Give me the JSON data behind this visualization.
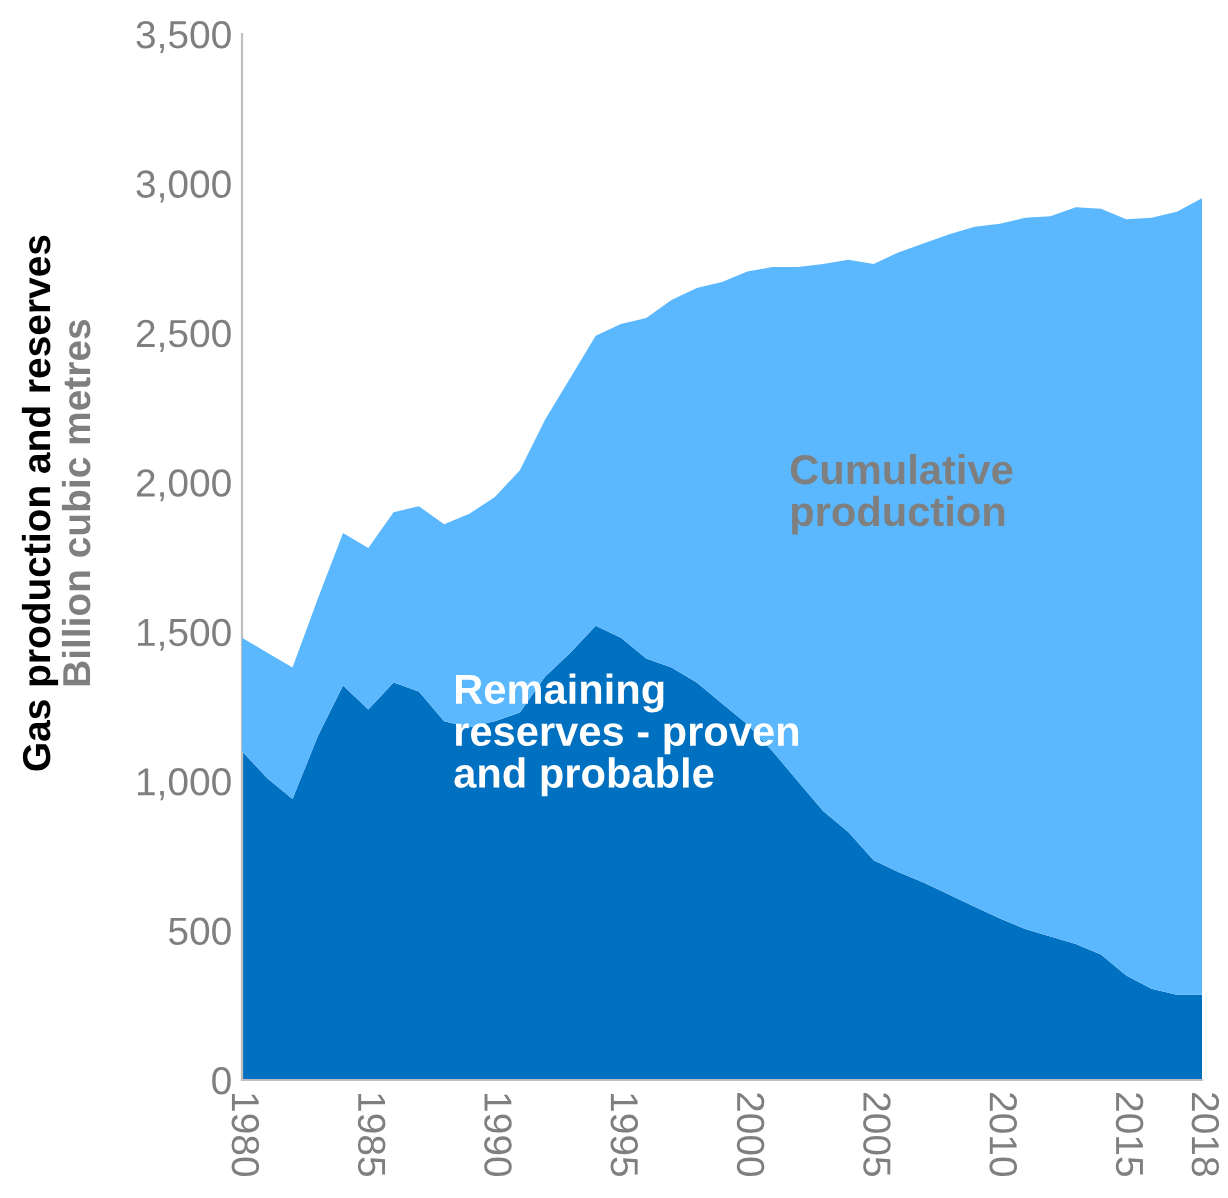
{
  "chart_data": {
    "type": "area",
    "stacked": true,
    "ylabel": "Gas production and reserves\nBillion cubic metres",
    "x": [
      1980,
      1981,
      1982,
      1983,
      1984,
      1985,
      1986,
      1987,
      1988,
      1989,
      1990,
      1991,
      1992,
      1993,
      1994,
      1995,
      1996,
      1997,
      1998,
      1999,
      2000,
      2001,
      2002,
      2003,
      2004,
      2005,
      2006,
      2007,
      2008,
      2009,
      2010,
      2011,
      2012,
      2013,
      2014,
      2015,
      2016,
      2017,
      2018
    ],
    "series": [
      {
        "name": "Remaining reserves - proven and probable",
        "color": "#0070c0",
        "values": [
          1100,
          1010,
          940,
          1150,
          1320,
          1240,
          1330,
          1300,
          1200,
          1180,
          1200,
          1230,
          1350,
          1430,
          1520,
          1480,
          1410,
          1380,
          1330,
          1260,
          1190,
          1100,
          1000,
          900,
          830,
          735,
          695,
          660,
          620,
          580,
          540,
          505,
          480,
          455,
          420,
          350,
          305,
          285,
          285
        ]
      },
      {
        "name": "Cumulative production",
        "color": "#5bb8ff",
        "values": [
          380,
          420,
          440,
          460,
          510,
          540,
          570,
          620,
          660,
          715,
          750,
          810,
          860,
          920,
          970,
          1050,
          1140,
          1230,
          1320,
          1410,
          1515,
          1620,
          1720,
          1830,
          1915,
          1995,
          2075,
          2140,
          2210,
          2275,
          2325,
          2380,
          2410,
          2465,
          2495,
          2530,
          2580,
          2620,
          2665
        ]
      }
    ],
    "xlim": [
      1980,
      2018
    ],
    "xticks": [
      1980,
      1985,
      1990,
      1995,
      2000,
      2005,
      2010,
      2015,
      2018
    ],
    "ylim": [
      0,
      3500
    ],
    "yticks": [
      0,
      500,
      {
        "value": 1000,
        "label": "1,000"
      },
      {
        "value": 1500,
        "label": "1,500"
      },
      {
        "value": 2000,
        "label": "2,000"
      },
      {
        "value": 2500,
        "label": "2,500"
      },
      {
        "value": 3000,
        "label": "3,000"
      },
      {
        "value": 3500,
        "label": "3,500"
      }
    ],
    "grid": false
  }
}
